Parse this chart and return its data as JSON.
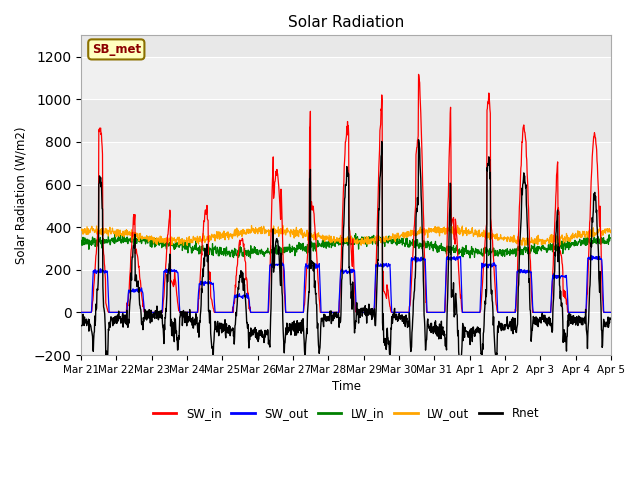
{
  "title": "Solar Radiation",
  "ylabel": "Solar Radiation (W/m2)",
  "xlabel": "Time",
  "ylim": [
    -200,
    1300
  ],
  "yticks": [
    -200,
    0,
    200,
    400,
    600,
    800,
    1000,
    1200
  ],
  "x_labels": [
    "Mar 21",
    "Mar 22",
    "Mar 23",
    "Mar 24",
    "Mar 25",
    "Mar 26",
    "Mar 27",
    "Mar 28",
    "Mar 29",
    "Mar 30",
    "Mar 31",
    "Apr 1",
    "Apr 2",
    "Apr 3",
    "Apr 4",
    "Apr 5"
  ],
  "annotation_text": "SB_met",
  "annotation_color": "#8B0000",
  "annotation_bg": "#FFFFC0",
  "bg_color": "#E8E8E8",
  "grid_color": "#FFFFFF",
  "legend_entries": [
    "SW_in",
    "SW_out",
    "LW_in",
    "LW_out",
    "Rnet"
  ],
  "legend_colors": [
    "red",
    "blue",
    "green",
    "orange",
    "black"
  ],
  "series_colors": [
    "red",
    "blue",
    "green",
    "orange",
    "black"
  ],
  "n_days": 15,
  "pts_per_day": 96,
  "seed": 42
}
